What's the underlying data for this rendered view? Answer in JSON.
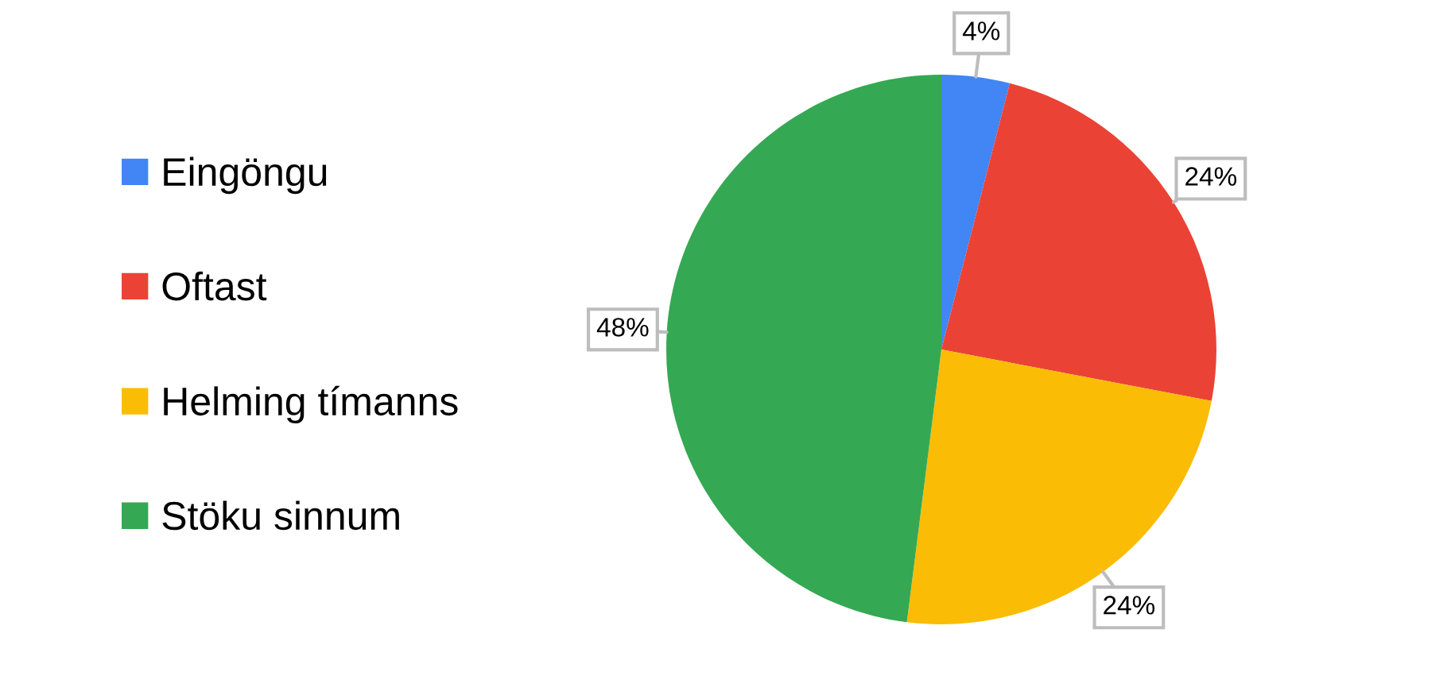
{
  "chart_data": {
    "type": "pie",
    "categories": [
      "Eingöngu",
      "Oftast",
      "Helming tímanns",
      "Stöku sinnum"
    ],
    "values": [
      4,
      24,
      24,
      48
    ],
    "colors": [
      "#4285f4",
      "#ea4335",
      "#fbbc05",
      "#34a853"
    ],
    "value_labels": [
      "4%",
      "24%",
      "24%",
      "48%"
    ],
    "legend": "left"
  }
}
